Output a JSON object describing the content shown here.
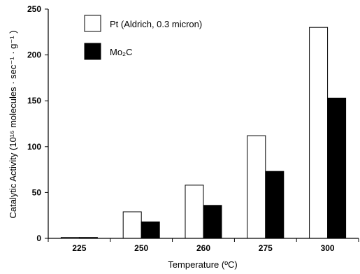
{
  "chart_data": {
    "type": "bar",
    "categories": [
      "225",
      "250",
      "260",
      "275",
      "300"
    ],
    "series": [
      {
        "name": "Pt (Aldrich, 0.3 micron)",
        "values": [
          1,
          29,
          58,
          112,
          230
        ],
        "fill": "#ffffff",
        "stroke": "#000000"
      },
      {
        "name": "Mo₂C",
        "values": [
          1,
          18,
          36,
          73,
          153
        ],
        "fill": "#000000",
        "stroke": "#000000"
      }
    ],
    "xlabel": "Temperature (ºC)",
    "ylabel": "Catalytic Activity (10¹⁶ molecules · sec⁻¹ · g⁻¹ )",
    "ylim": [
      0,
      250
    ],
    "yticks": [
      0,
      50,
      100,
      150,
      200,
      250
    ],
    "grid": false,
    "legend_position": "top-left"
  }
}
